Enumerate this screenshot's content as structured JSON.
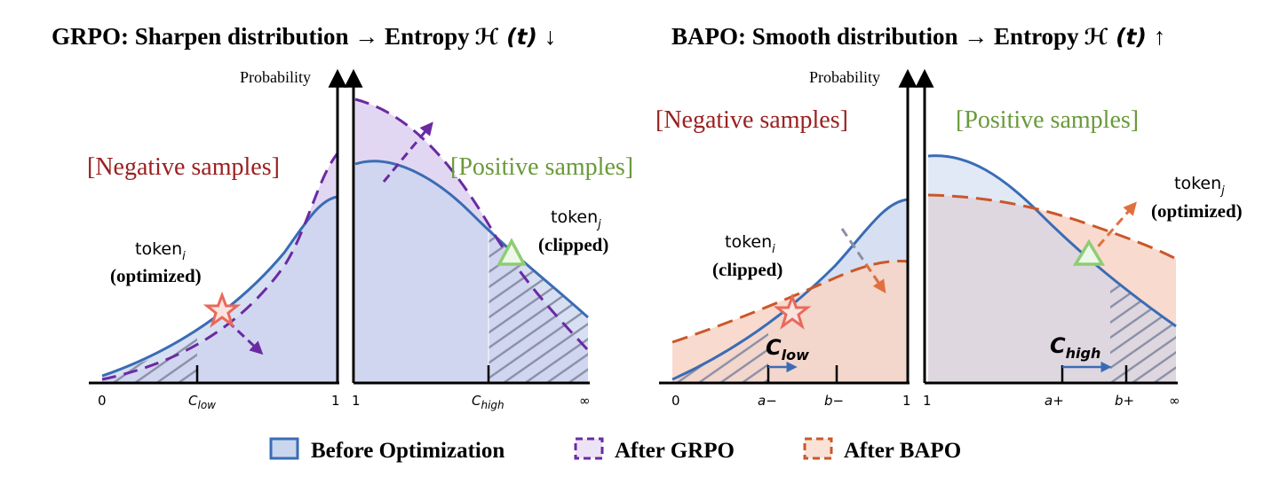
{
  "titles": {
    "grpo": "GRPO: Sharpen distribution → Entropy",
    "grpo_h": "ℋ (t)",
    "grpo_arrow": "↓",
    "bapo": "BAPO: Smooth distribution → Entropy",
    "bapo_h": "ℋ (t)",
    "bapo_arrow": "↑"
  },
  "left_panel": {
    "ylabel": "Probability",
    "negative_label": "[Negative samples]",
    "positive_label": "[Positive samples]",
    "token_i": {
      "name": "token",
      "sub": "i",
      "status": "(optimized)"
    },
    "token_j": {
      "name": "token",
      "sub": "j",
      "status": "(clipped)"
    },
    "ticks": {
      "zero": "0",
      "c_low": "C",
      "c_low_sub": "low",
      "one_a": "1",
      "one_b": "1",
      "c_high": "C",
      "c_high_sub": "high",
      "inf": "∞"
    }
  },
  "right_panel": {
    "ylabel": "Probability",
    "negative_label": "[Negative samples]",
    "positive_label": "[Positive samples]",
    "token_i": {
      "name": "token",
      "sub": "i",
      "status": "(clipped)"
    },
    "token_j": {
      "name": "token",
      "sub": "j",
      "status": "(optimized)"
    },
    "c_low": {
      "main": "C",
      "sub": "low"
    },
    "c_high": {
      "main": "C",
      "sub": "high"
    },
    "ticks": {
      "zero": "0",
      "a_minus": "a−",
      "b_minus": "b−",
      "one_a": "1",
      "one_b": "1",
      "a_plus": "a+",
      "b_plus": "b+",
      "inf": "∞"
    }
  },
  "legend": {
    "before": "Before Optimization",
    "grpo": "After GRPO",
    "bapo": "After BAPO"
  },
  "colors": {
    "before_stroke": "#3a6cb5",
    "before_fill": "#c9d6ee",
    "grpo_stroke": "#6a2aa3",
    "grpo_fill": "#ddd0f0",
    "bapo_stroke": "#c9582a",
    "bapo_fill": "#f8d3c5",
    "negative": "#9b2020",
    "positive": "#6a9a3a",
    "star": "#e86a5a",
    "triangle": "#8fcc74"
  }
}
